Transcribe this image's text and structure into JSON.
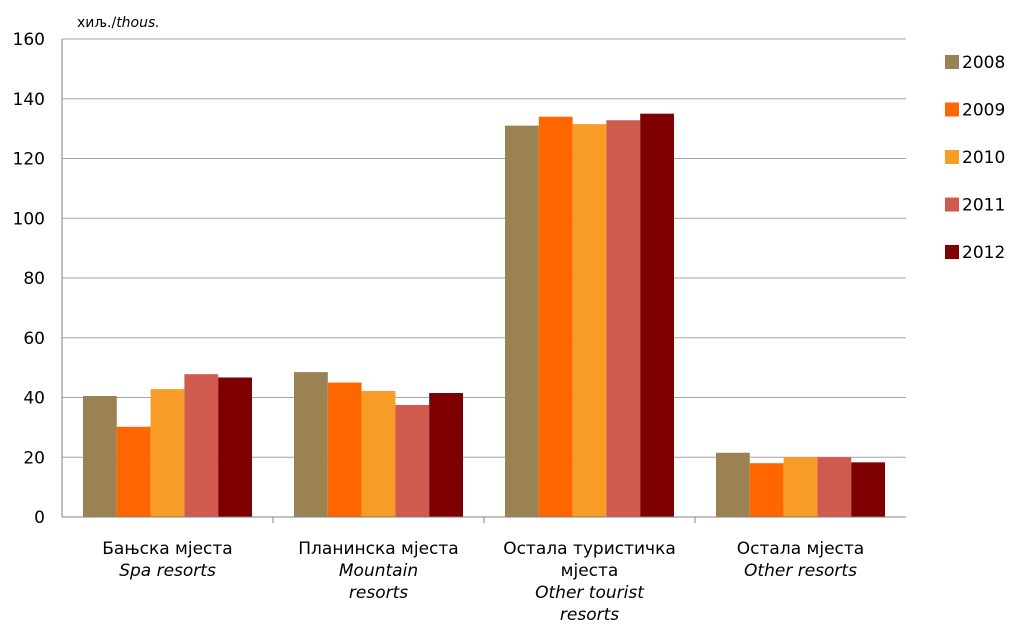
{
  "chart_data": {
    "type": "bar",
    "unit_label": {
      "local": "хиљ./",
      "english": "thous."
    },
    "categories": [
      {
        "local": [
          "Бањска мјеста"
        ],
        "english": [
          "Spa resorts"
        ]
      },
      {
        "local": [
          "Планинска мјеста"
        ],
        "english": [
          "Mountain",
          "resorts"
        ]
      },
      {
        "local": [
          "Остала туристичка",
          "мјеста"
        ],
        "english": [
          "Other tourist",
          "resorts"
        ]
      },
      {
        "local": [
          "Остала мјеста"
        ],
        "english": [
          "Other resorts"
        ]
      }
    ],
    "series": [
      {
        "name": "2008",
        "color": "#9B8252",
        "values": [
          40.5,
          48.5,
          131,
          21.5
        ]
      },
      {
        "name": "2009",
        "color": "#FF6600",
        "values": [
          30.2,
          45,
          134,
          18
        ]
      },
      {
        "name": "2010",
        "color": "#F79C26",
        "values": [
          42.8,
          42.2,
          131.5,
          20
        ]
      },
      {
        "name": "2011",
        "color": "#D05A4D",
        "values": [
          47.8,
          37.5,
          132.8,
          20
        ]
      },
      {
        "name": "2012",
        "color": "#7F0000",
        "values": [
          46.7,
          41.5,
          135,
          18.3
        ]
      }
    ],
    "yticks": [
      "0",
      "20",
      "40",
      "60",
      "80",
      "100",
      "120",
      "140",
      "160"
    ],
    "ylim": [
      0,
      160
    ],
    "grid": true,
    "legend_position": "right"
  }
}
